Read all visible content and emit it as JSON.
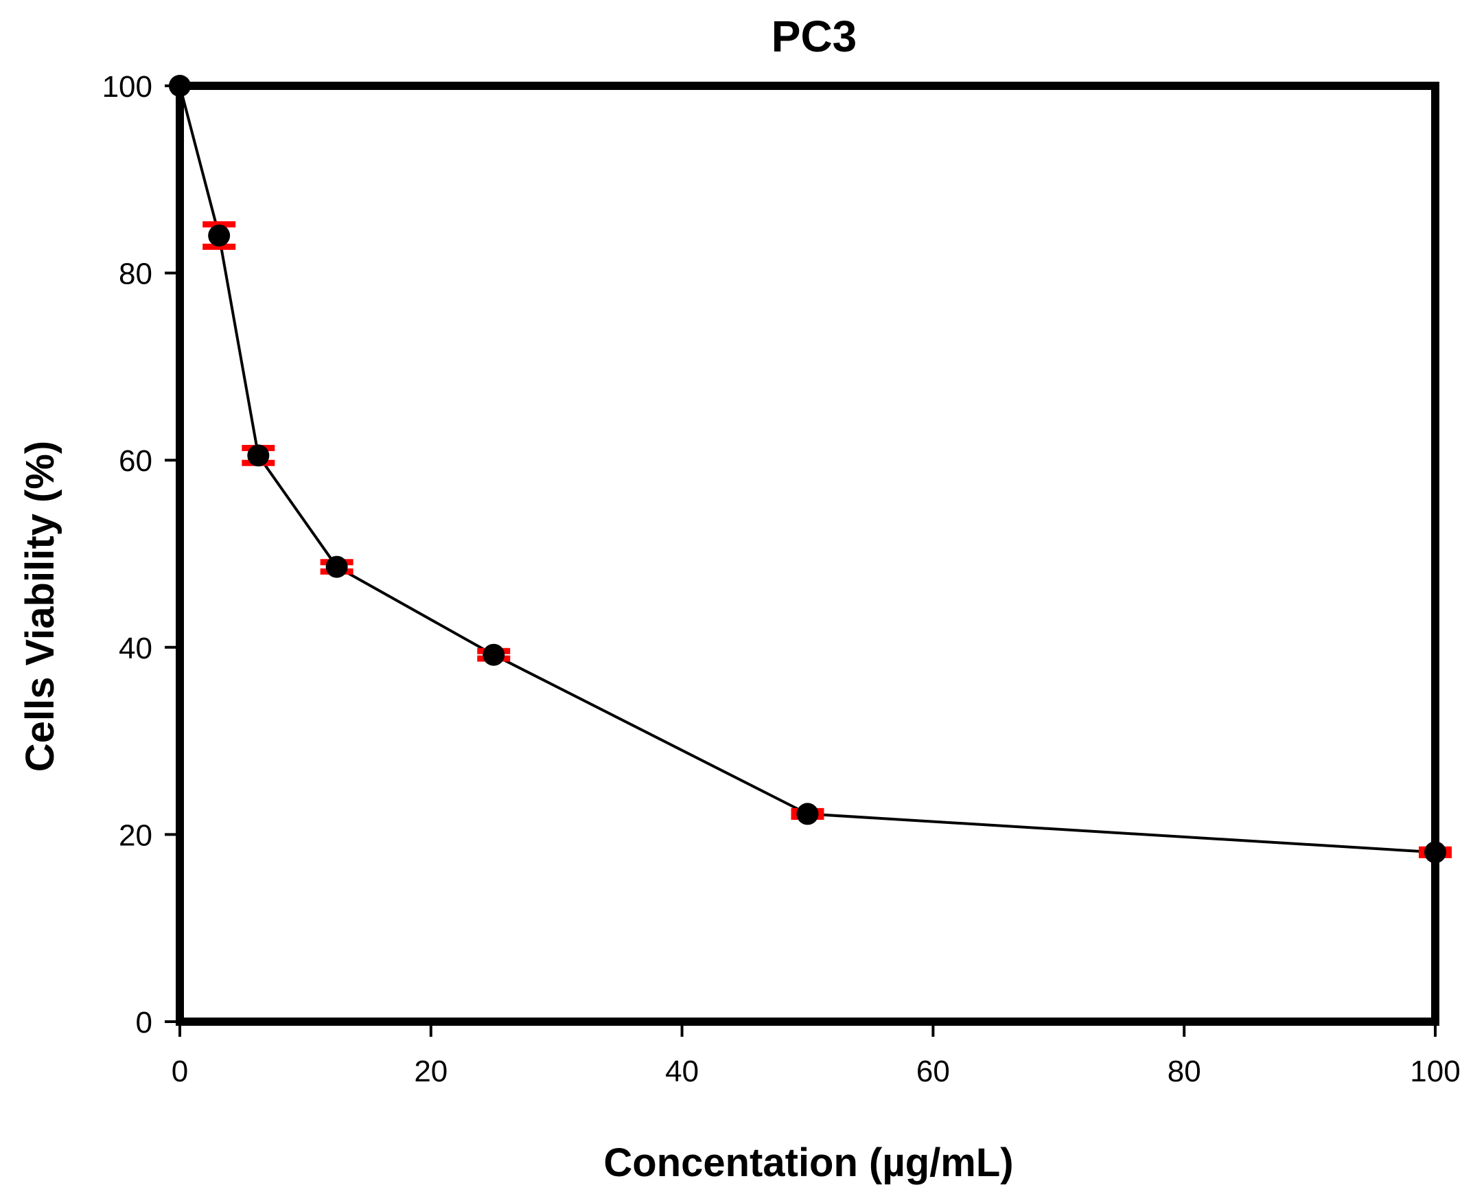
{
  "chart_data": {
    "type": "scatter",
    "title": "PC3",
    "xlabel": "Concentation (µg/mL)",
    "ylabel": "Cells Viability (%)",
    "xlim": [
      0,
      100
    ],
    "ylim": [
      0,
      100
    ],
    "xticks": [
      "0",
      "20",
      "40",
      "60",
      "80",
      "100"
    ],
    "yticks": [
      "0",
      "20",
      "40",
      "60",
      "80",
      "100"
    ],
    "grid": false,
    "legend": "none",
    "series": [
      {
        "name": "PC3",
        "x": [
          0,
          3.125,
          6.25,
          12.5,
          25,
          50,
          100
        ],
        "y": [
          100,
          84,
          60.5,
          48.6,
          39.2,
          22.2,
          18.1
        ],
        "error": [
          0,
          1.2,
          0.8,
          0.5,
          0.4,
          0.3,
          0.3
        ],
        "marker_color": "#000000",
        "error_color": "#ff0000",
        "line_color": "#000000"
      }
    ]
  }
}
